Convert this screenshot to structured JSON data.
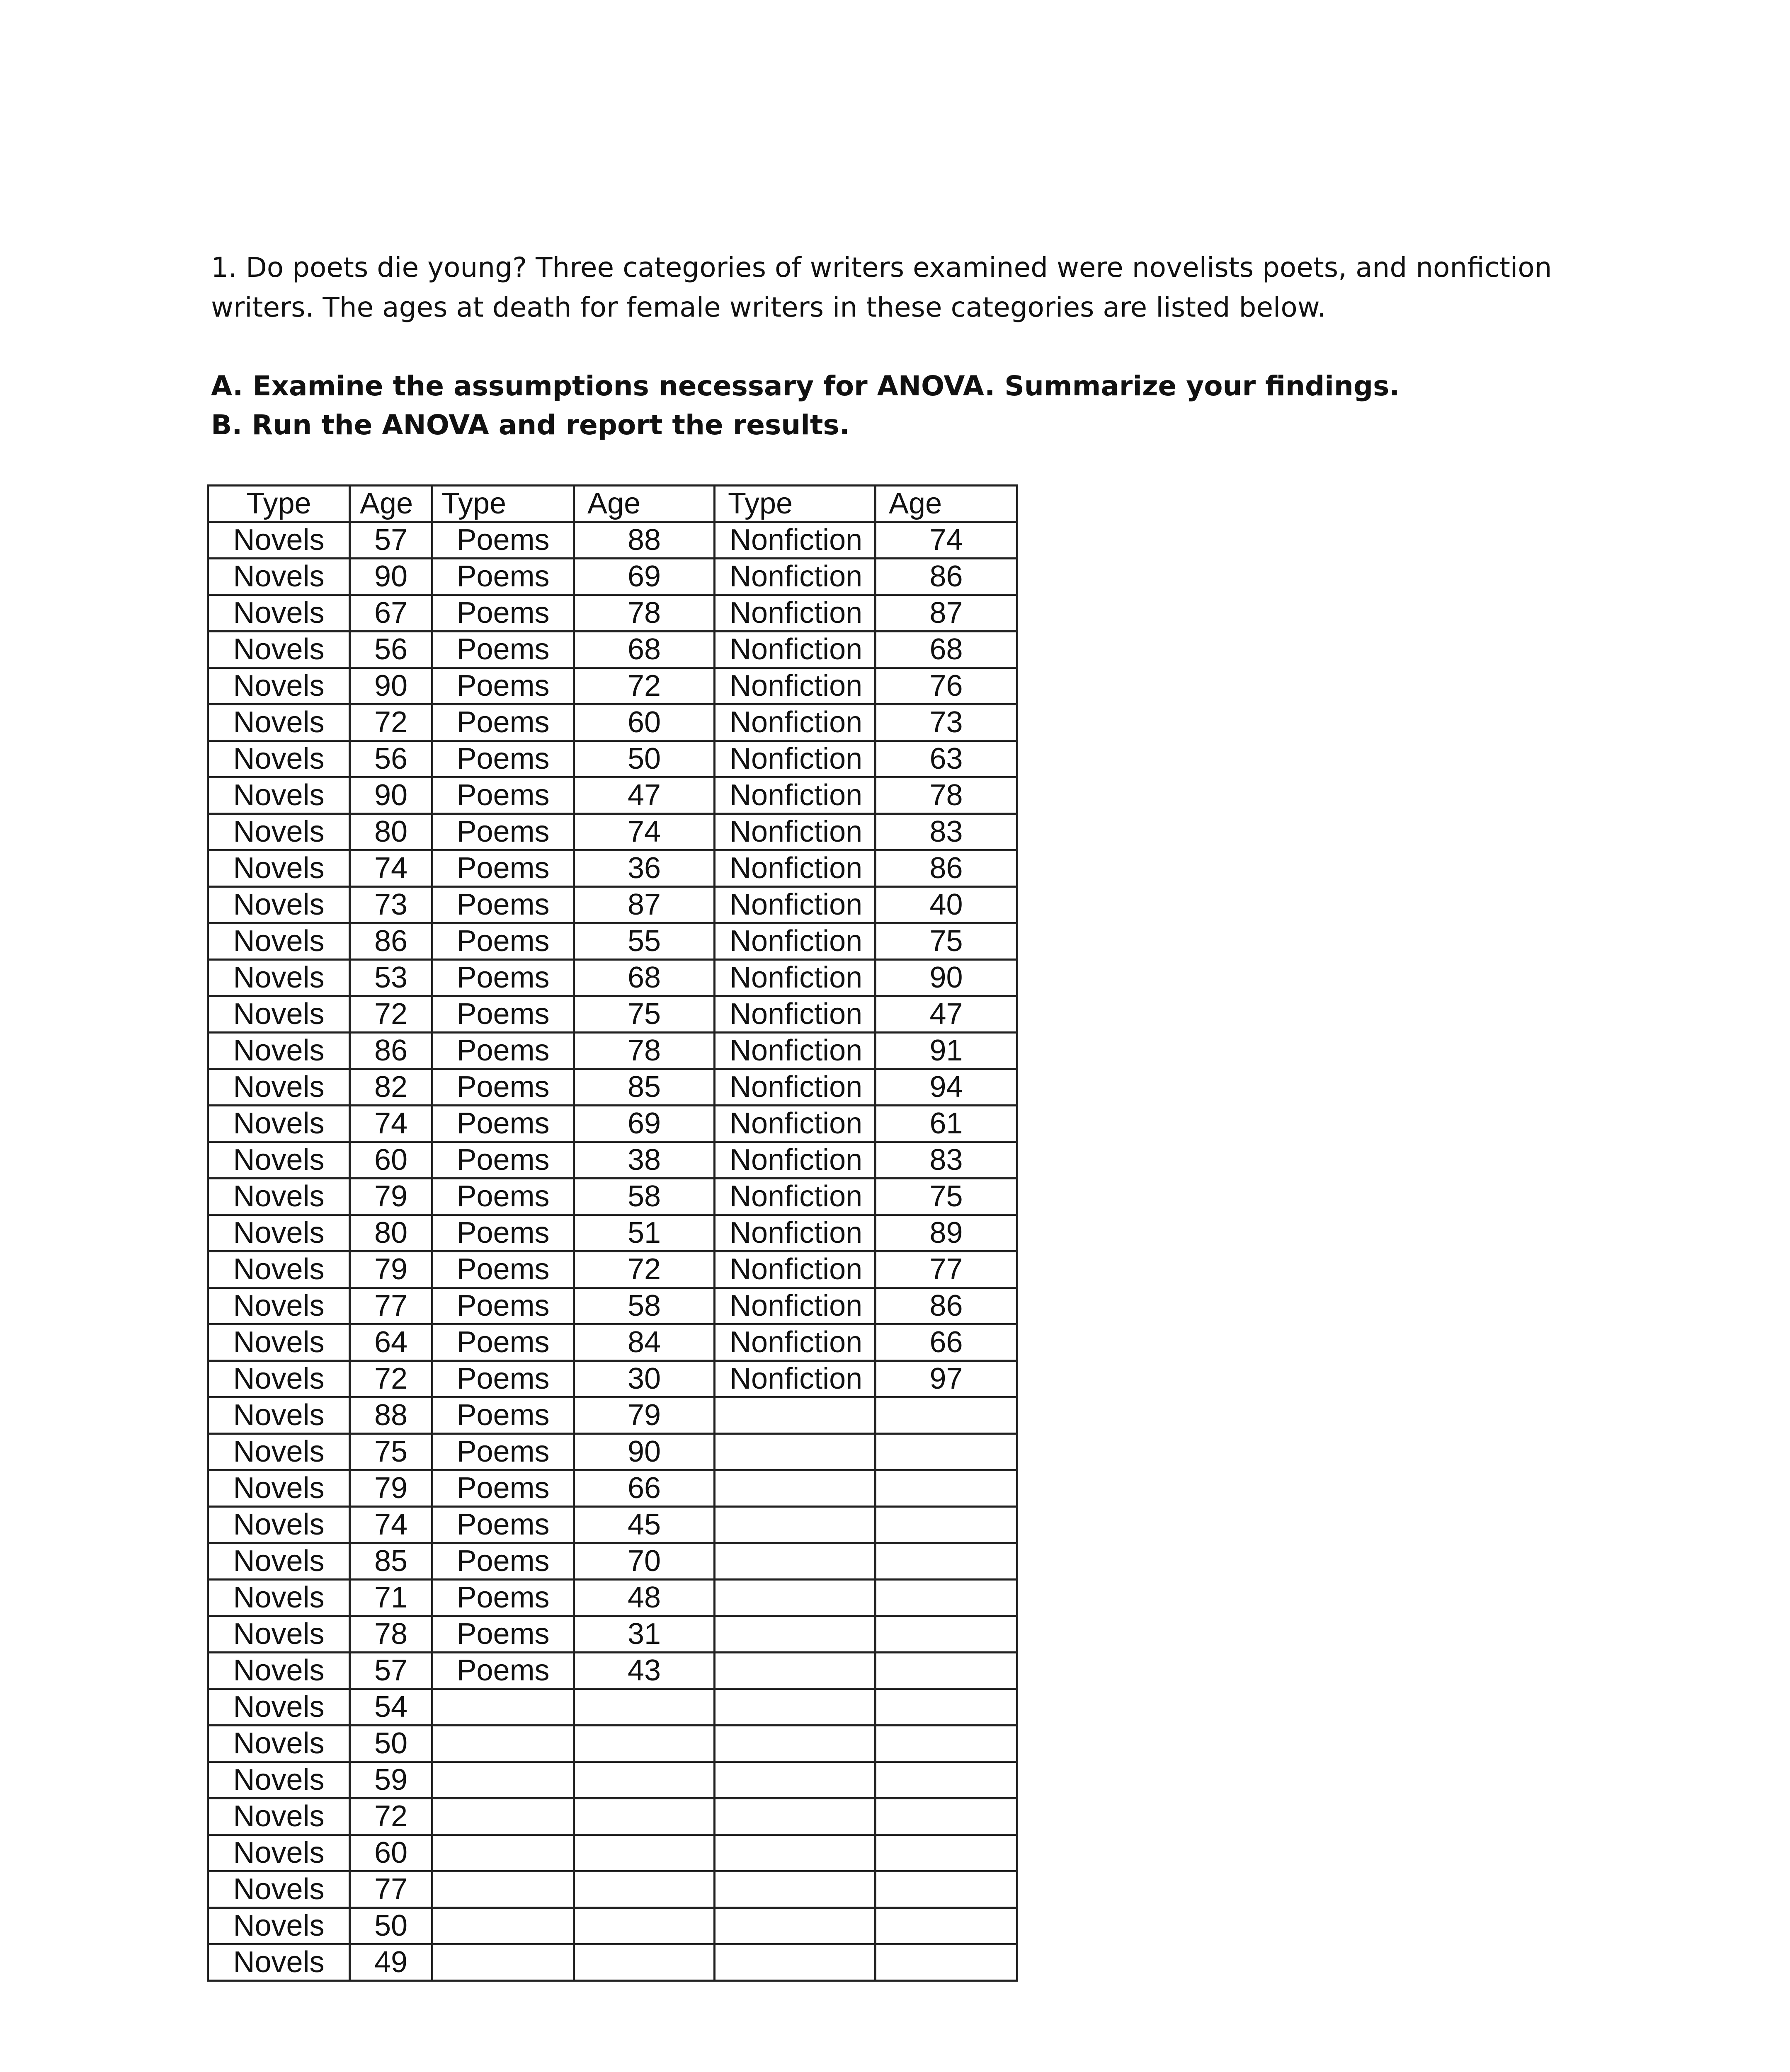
{
  "question": {
    "line1": "1. Do poets die young?  Three categories of writers examined were novelists poets, and nonfiction",
    "line2": "writers.  The ages at death for female writers in these categories are listed below."
  },
  "tasks": {
    "a": "A. Examine the assumptions necessary for ANOVA.  Summarize your findings.",
    "b": "B. Run the ANOVA and report the results."
  },
  "table": {
    "headers": [
      "Type",
      "Age",
      "Type",
      "Age",
      "Type",
      "Age"
    ],
    "novels": {
      "type": "Novels",
      "ages": [
        "57",
        "90",
        "67",
        "56",
        "90",
        "72",
        "56",
        "90",
        "80",
        "74",
        "73",
        "86",
        "53",
        "72",
        "86",
        "82",
        "74",
        "60",
        "79",
        "80",
        "79",
        "77",
        "64",
        "72",
        "88",
        "75",
        "79",
        "74",
        "85",
        "71",
        "78",
        "57",
        "54",
        "50",
        "59",
        "72",
        "60",
        "77",
        "50",
        "49"
      ]
    },
    "poems": {
      "type": "Poems",
      "ages": [
        "88",
        "69",
        "78",
        "68",
        "72",
        "60",
        "50",
        "47",
        "74",
        "36",
        "87",
        "55",
        "68",
        "75",
        "78",
        "85",
        "69",
        "38",
        "58",
        "51",
        "72",
        "58",
        "84",
        "30",
        "79",
        "90",
        "66",
        "45",
        "70",
        "48",
        "31",
        "43"
      ]
    },
    "nonfiction": {
      "type": "Nonfiction",
      "ages": [
        "74",
        "86",
        "87",
        "68",
        "76",
        "73",
        "63",
        "78",
        "83",
        "86",
        "40",
        "75",
        "90",
        "47",
        "91",
        "94",
        "61",
        "83",
        "75",
        "89",
        "77",
        "86",
        "66",
        "97"
      ]
    }
  }
}
